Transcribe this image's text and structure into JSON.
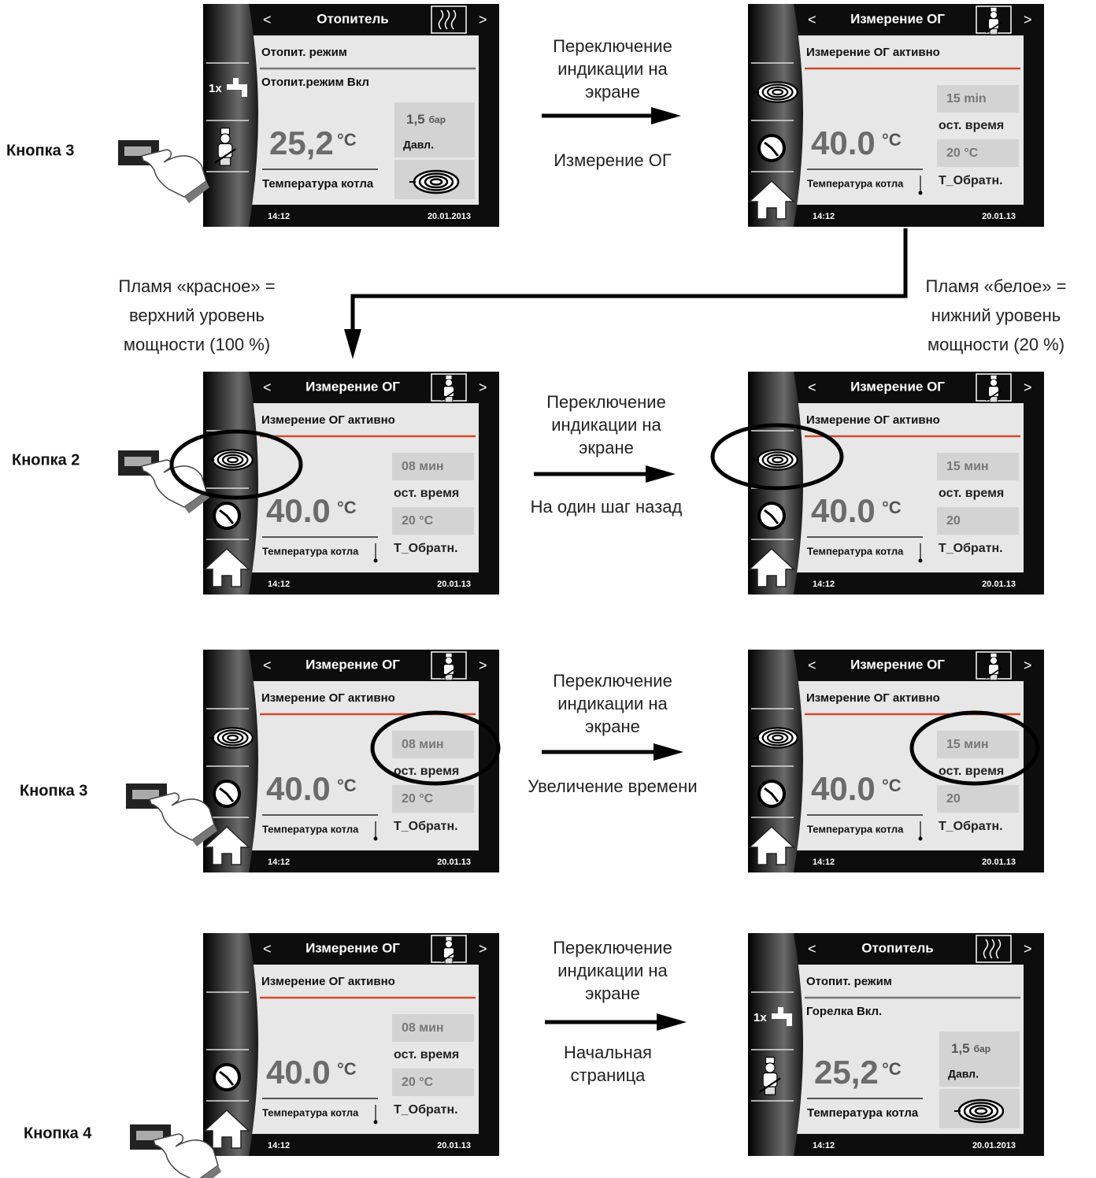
{
  "buttons": [
    {
      "label": "Кнопка 3"
    },
    {
      "label": "Кнопка 2"
    },
    {
      "label": "Кнопка 3"
    },
    {
      "label": "Кнопка 4"
    }
  ],
  "screens": [
    {
      "type": "heating",
      "title": "Отопитель",
      "mode": "Отопит. режим",
      "status": "Отопит.режим Вкл",
      "side_label": "1x",
      "temp": "25,2",
      "temp_unit": "°C",
      "pressure": "1,5",
      "pressure_unit": "бар",
      "pressure_label": "Давл.",
      "temp_label": "Температура котла",
      "time": "14:12",
      "date": "20.01.2013"
    },
    {
      "type": "flue",
      "title": "Измерение ОГ",
      "mode": "Измерение ОГ активно",
      "flame_icon": true,
      "temp": "40.0",
      "temp_unit": "°C",
      "remaining": "15 min",
      "remaining_label": "ост. время",
      "return_temp": "20 °C",
      "return_label": "Т_Обратн.",
      "temp_label": "Температура котла",
      "time": "14:12",
      "date": "20.01.13"
    },
    {
      "type": "flue",
      "title": "Измерение ОГ",
      "mode": "Измерение ОГ активно",
      "flame_icon": true,
      "temp": "40.0",
      "temp_unit": "°C",
      "remaining": "08 мин",
      "remaining_label": "ост. время",
      "return_temp": "20 °C",
      "return_label": "Т_Обратн.",
      "temp_label": "Температура котла",
      "time": "14:12",
      "date": "20.01.13"
    },
    {
      "type": "flue",
      "title": "Измерение ОГ",
      "mode": "Измерение ОГ активно",
      "flame_icon": true,
      "temp": "40.0",
      "temp_unit": "°C",
      "remaining": "15 мин",
      "remaining_label": "ост. время",
      "return_temp": "20",
      "return_label": "Т_Обратн.",
      "temp_label": "Температура котла",
      "time": "14:12",
      "date": "20.01.13"
    },
    {
      "type": "flue",
      "title": "Измерение ОГ",
      "mode": "Измерение ОГ активно",
      "flame_icon": true,
      "temp": "40.0",
      "temp_unit": "°C",
      "remaining": "08 мин",
      "remaining_label": "ост. время",
      "return_temp": "20 °C",
      "return_label": "Т_Обратн.",
      "temp_label": "Температура котла",
      "time": "14:12",
      "date": "20.01.13"
    },
    {
      "type": "flue",
      "title": "Измерение ОГ",
      "mode": "Измерение ОГ активно",
      "flame_icon": true,
      "temp": "40.0",
      "temp_unit": "°C",
      "remaining": "15 мин",
      "remaining_label": "ост. время",
      "return_temp": "20",
      "return_label": "Т_Обратн.",
      "temp_label": "Температура котла",
      "time": "14:12",
      "date": "20.01.13"
    },
    {
      "type": "flue",
      "title": "Измерение ОГ",
      "mode": "Измерение ОГ активно",
      "flame_icon": false,
      "temp": "40.0",
      "temp_unit": "°C",
      "remaining": "08 мин",
      "remaining_label": "ост. время",
      "return_temp": "20 °C",
      "return_label": "Т_Обратн.",
      "temp_label": "Температура котла",
      "time": "14:12",
      "date": "20.01.13"
    },
    {
      "type": "heating",
      "title": "Отопитель",
      "mode": "Отопит. режим",
      "status": "Горелка Вкл.",
      "side_label": "1x",
      "temp": "25,2",
      "temp_unit": "°C",
      "pressure": "1,5",
      "pressure_unit": "бар",
      "pressure_label": "Давл.",
      "temp_label": "Температура котла",
      "time": "14:12",
      "date": "20.01.2013"
    }
  ],
  "transitions": [
    {
      "lines": [
        "Переключение",
        "индикации на",
        "экране"
      ],
      "caption": [
        "Измерение ОГ"
      ]
    },
    {
      "lines": [
        "Переключение",
        "индикации на",
        "экране"
      ],
      "caption": [
        "На один шаг назад"
      ]
    },
    {
      "lines": [
        "Переключение",
        "индикации на",
        "экране"
      ],
      "caption": [
        "Увеличение времени"
      ]
    },
    {
      "lines": [
        "Переключение",
        "индикации на",
        "экране"
      ],
      "caption": [
        "Начальная",
        "страница"
      ]
    }
  ],
  "notes": {
    "left": [
      "Пламя «красное» =",
      "верхний уровень",
      "мощности (100 %)"
    ],
    "right": [
      "Пламя «белое» =",
      "нижний уровень",
      "мощности (20 %)"
    ]
  }
}
